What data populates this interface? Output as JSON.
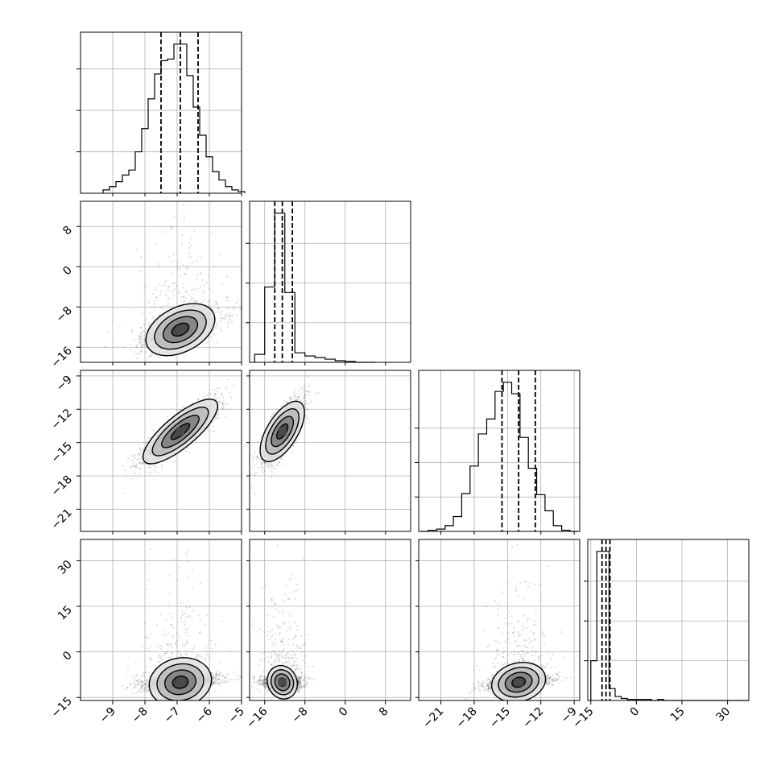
{
  "chart_data": {
    "type": "corner",
    "grid": true,
    "parameters": [
      {
        "range": [
          -10,
          -5
        ],
        "ticks": [
          -9,
          -8,
          -7,
          -6,
          -5
        ],
        "labels": [
          "−9",
          "−8",
          "−7",
          "−6",
          "−5"
        ],
        "mean": -6.9,
        "sd": 0.58,
        "quantiles": [
          -7.5,
          -6.9,
          -6.35
        ]
      },
      {
        "range": [
          -19,
          13
        ],
        "ticks": [
          -16,
          -8,
          0,
          8
        ],
        "labels": [
          "−16",
          "−8",
          "0",
          "8"
        ],
        "mean": -12.5,
        "sd": 1.9,
        "quantiles": [
          -14.0,
          -12.5,
          -10.5
        ]
      },
      {
        "range": [
          -23,
          -8.5
        ],
        "ticks": [
          -21,
          -18,
          -15,
          -12,
          -9
        ],
        "labels": [
          "−21",
          "−18",
          "−15",
          "−12",
          "−9"
        ],
        "mean": -14.0,
        "sd": 1.4,
        "quantiles": [
          -15.5,
          -14.0,
          -12.5
        ]
      },
      {
        "range": [
          -16,
          37
        ],
        "ticks": [
          -15,
          0,
          15,
          30
        ],
        "labels": [
          "−15",
          "0",
          "15",
          "30"
        ],
        "mean": -10.0,
        "sd": 1.3,
        "quantiles": [
          -11.3,
          -10.0,
          -8.7
        ]
      }
    ],
    "histograms": [
      {
        "bins": [
          -9.2,
          -9.0,
          -8.8,
          -8.6,
          -8.4,
          -8.2,
          -8.0,
          -7.8,
          -7.6,
          -7.4,
          -7.2,
          -7.0,
          -6.8,
          -6.6,
          -6.4,
          -6.2,
          -6.0,
          -5.8,
          -5.6,
          -5.4,
          -5.2,
          -5.0
        ],
        "counts": [
          2,
          4,
          7,
          11,
          14,
          25,
          39,
          57,
          72,
          80,
          81,
          90,
          90,
          71,
          52,
          35,
          22,
          13,
          8,
          4,
          2,
          1
        ],
        "yticks": [
          25,
          50,
          75
        ]
      },
      {
        "bins": [
          -17,
          -15,
          -13,
          -11,
          -9,
          -7,
          -5,
          -3,
          -1,
          1,
          3,
          5
        ],
        "counts": [
          10,
          95,
          188,
          88,
          12,
          8,
          6,
          4,
          2,
          1,
          0,
          0
        ],
        "yticks": [
          50,
          100,
          150
        ]
      },
      {
        "bins": [
          -22.5,
          -21.75,
          -21,
          -20.25,
          -19.5,
          -18.75,
          -18,
          -17.25,
          -16.5,
          -15.75,
          -15,
          -14.25,
          -13.5,
          -12.75,
          -12,
          -11.25,
          -10.5,
          -9.75,
          -9
        ],
        "counts": [
          0,
          1,
          2,
          5,
          13,
          33,
          57,
          85,
          98,
          122,
          130,
          120,
          82,
          55,
          32,
          18,
          5,
          1,
          0
        ],
        "yticks": [
          30,
          60,
          90
        ]
      },
      {
        "bins": [
          -14,
          -12,
          -10,
          -8,
          -6,
          -4,
          -2,
          0,
          2,
          4,
          6,
          8,
          10,
          12,
          14,
          16,
          18,
          20,
          22,
          24,
          26,
          28,
          30,
          32,
          34,
          36
        ],
        "counts": [
          40,
          150,
          150,
          12,
          4,
          2,
          1,
          1,
          1,
          1,
          0,
          1,
          0,
          0,
          0,
          0,
          0,
          0,
          0,
          0,
          0,
          0,
          0,
          0,
          0,
          0
        ],
        "yticks": [
          40,
          80,
          120
        ]
      }
    ],
    "correlations": [
      {
        "pair": [
          0,
          1
        ],
        "rho": 0.55,
        "tail": "up"
      },
      {
        "pair": [
          0,
          2
        ],
        "rho": 0.85
      },
      {
        "pair": [
          1,
          2
        ],
        "rho": 0.75
      },
      {
        "pair": [
          0,
          3
        ],
        "rho": 0.35,
        "tail": "up"
      },
      {
        "pair": [
          1,
          3
        ],
        "rho": 0.0,
        "tail": "up"
      },
      {
        "pair": [
          2,
          3
        ],
        "rho": 0.45,
        "tail": "up"
      }
    ],
    "contour_levels_sigma": [
      0.5,
      1.0,
      1.5,
      2.0
    ],
    "density_fill": "#4a4a4a",
    "scatter_points": 1800
  }
}
